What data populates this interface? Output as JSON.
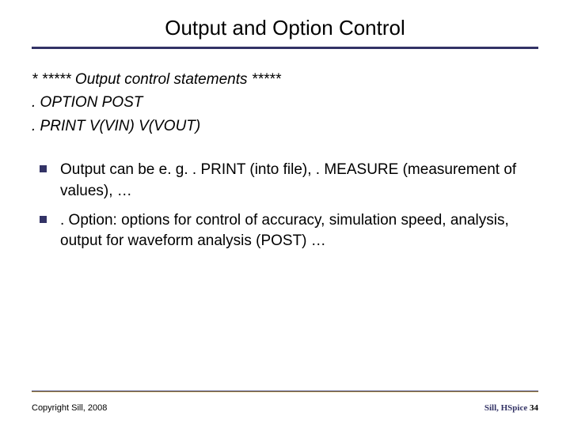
{
  "title": "Output and Option Control",
  "code": {
    "line1": "* ***** Output control statements *****",
    "line2": ". OPTION POST",
    "line3": ". PRINT V(VIN) V(VOUT)"
  },
  "bullets": [
    "Output can be e. g. . PRINT (into file), . MEASURE (measurement of values), …",
    ". Option: options for control of accuracy, simulation speed, analysis, output for waveform analysis (POST) …"
  ],
  "footer": {
    "copyright": "Copyright Sill, 2008",
    "label": "Sill, HSpice",
    "page": "34"
  },
  "colors": {
    "accent": "#333366",
    "gold": "#bfa050",
    "text": "#000000",
    "background": "#ffffff"
  },
  "fonts": {
    "title_size": 26,
    "body_size": 19,
    "footer_size": 11
  }
}
